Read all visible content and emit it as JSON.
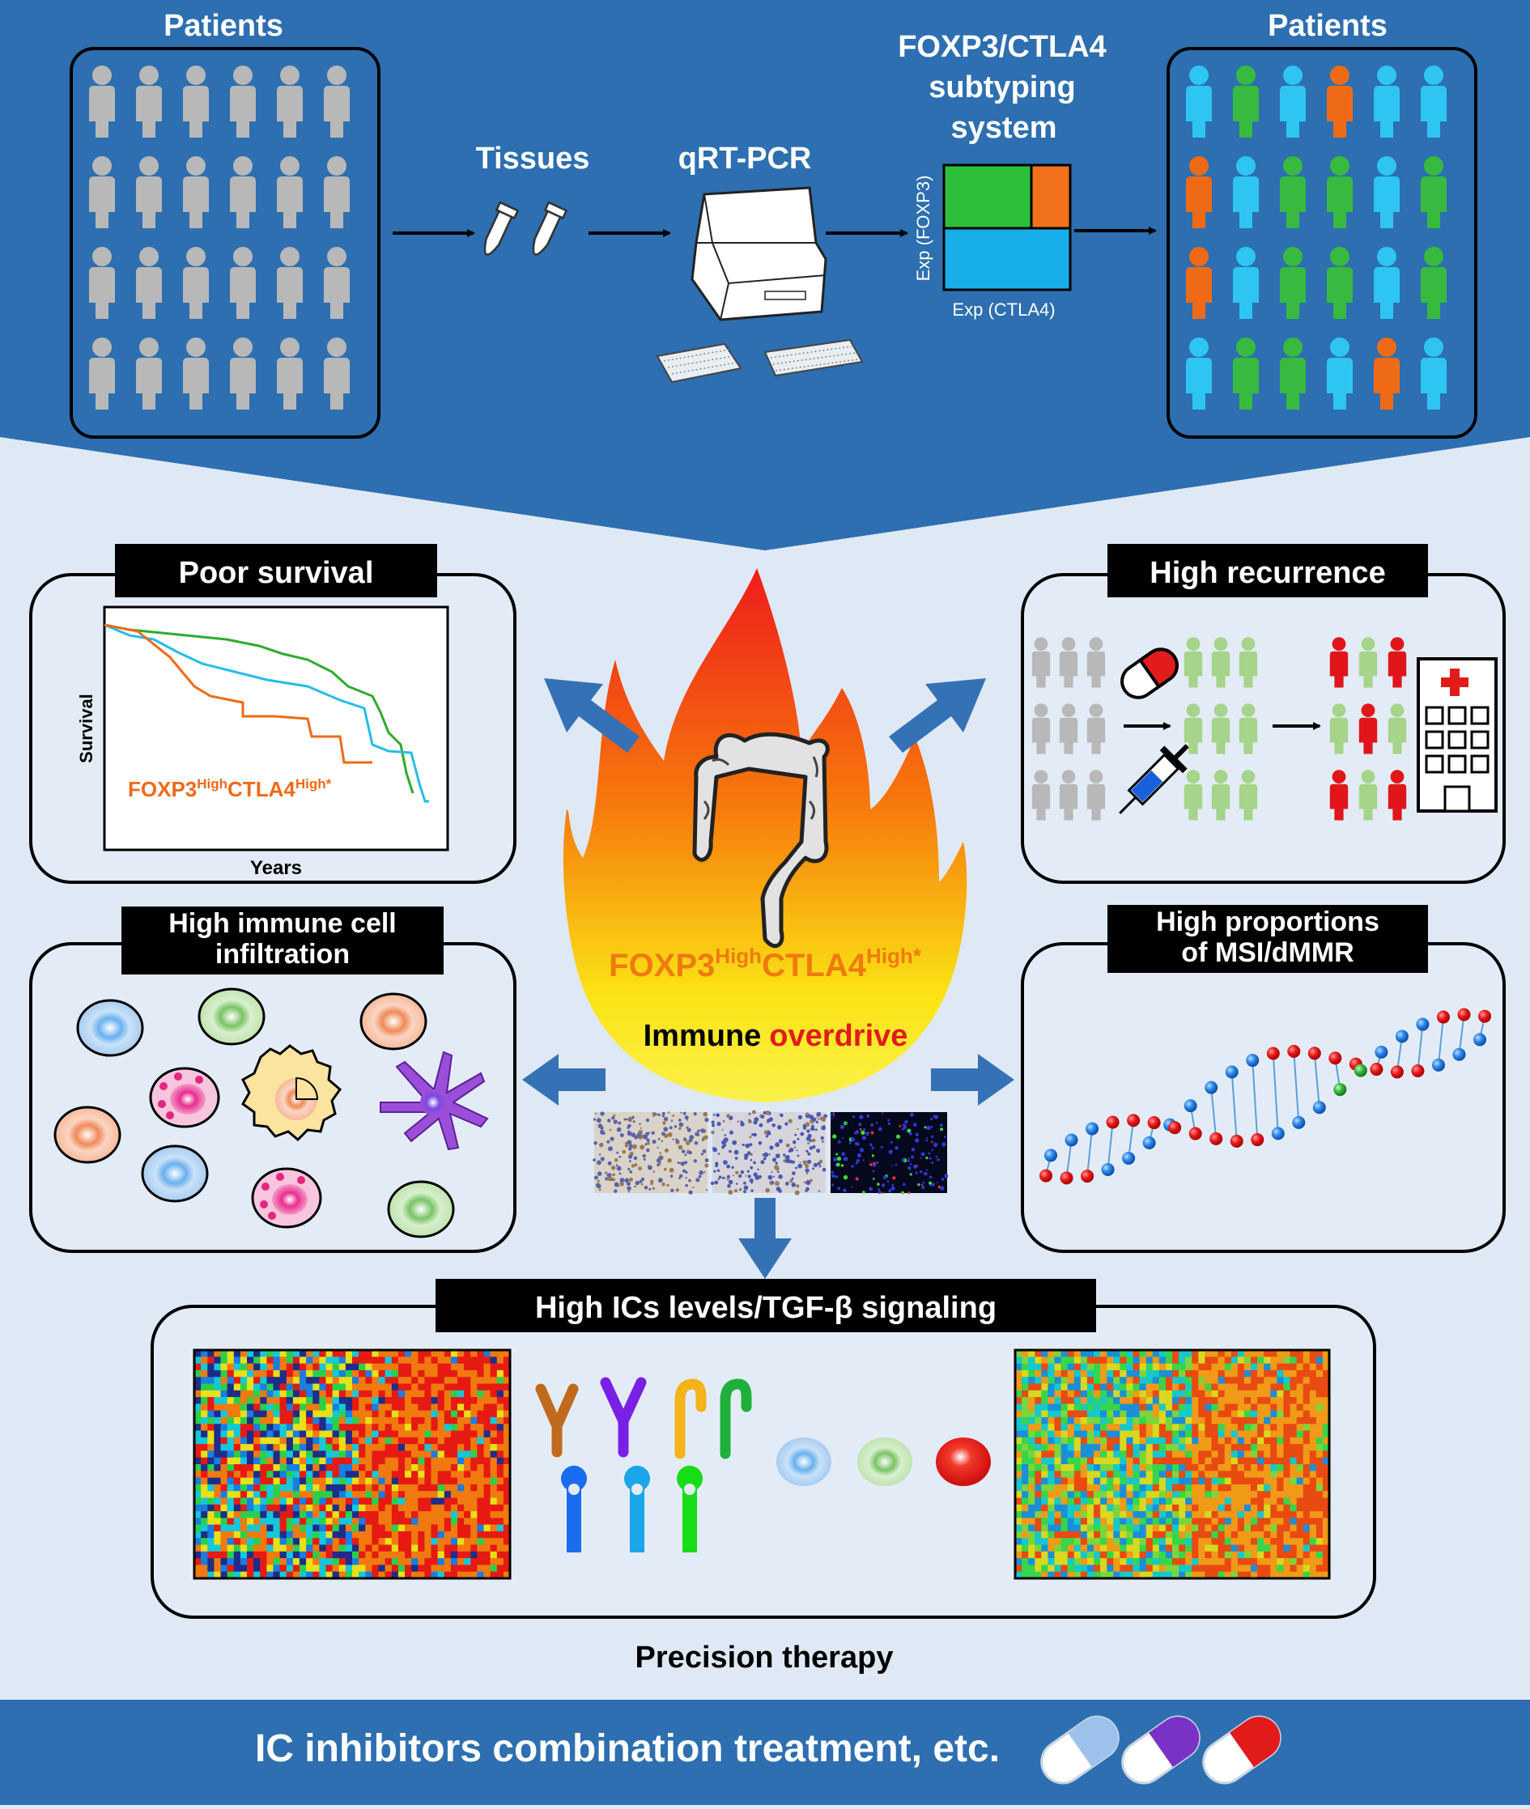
{
  "colors": {
    "top_band": "#2d6fb0",
    "background": "#dfe9f5",
    "bottom_band": "#2d6fb0",
    "arrow_blue": "#3572b5",
    "grey_person": "#b8b8b8",
    "cyan_person": "#2ec5f2",
    "green_person": "#38b93f",
    "orange_person": "#ef6a17",
    "light_green_person": "#a6d48a",
    "red_person": "#e0161b",
    "box_green": "#2dbf3a",
    "box_orange": "#f0701c",
    "box_cyan": "#17aeea"
  },
  "workflow": {
    "patients_left_title": "Patients",
    "tissues_label": "Tissues",
    "qrtpcr_label": "qRT-PCR",
    "subtyping_title_line1": "FOXP3/CTLA4",
    "subtyping_title_line2": "subtyping",
    "subtyping_title_line3": "system",
    "subtyping_y_axis": "Exp (FOXP3)",
    "subtyping_x_axis": "Exp (CTLA4)",
    "patients_right_title": "Patients",
    "patients_right_grid": [
      [
        "cyan",
        "green",
        "cyan",
        "orange",
        "cyan",
        "cyan"
      ],
      [
        "orange",
        "cyan",
        "green",
        "green",
        "cyan",
        "green"
      ],
      [
        "orange",
        "cyan",
        "green",
        "green",
        "cyan",
        "green"
      ],
      [
        "cyan",
        "green",
        "green",
        "cyan",
        "orange",
        "cyan"
      ]
    ]
  },
  "center": {
    "subtype_main1": "FOXP3",
    "subtype_sup1": "High",
    "subtype_main2": "CTLA4",
    "subtype_sup2": "High*",
    "immune_word1": "Immune",
    "immune_word2": "overdrive"
  },
  "panels": {
    "survival": {
      "title": "Poor survival",
      "y_label": "Survival",
      "x_label": "Years",
      "curve_label_main1": "FOXP3",
      "curve_label_sup1": "High",
      "curve_label_main2": "CTLA4",
      "curve_label_sup2": "High*"
    },
    "recurrence": {
      "title": "High recurrence"
    },
    "immune": {
      "title_line1": "High immune cell",
      "title_line2": "infiltration"
    },
    "msi": {
      "title_line1": "High proportions",
      "title_line2": "of MSI/dMMR"
    },
    "ics": {
      "title": "High ICs levels/TGF-β signaling"
    }
  },
  "bottom": {
    "precision_label": "Precision therapy",
    "treatment_label": "IC inhibitors combination treatment, etc."
  },
  "icons": {
    "tube": "tube-icon",
    "pcr_machine": "pcr-machine-icon",
    "colon": "colon-icon",
    "flame": "flame-icon",
    "pill": "pill-icon",
    "syringe": "syringe-icon",
    "hospital": "hospital-icon",
    "antibody": "antibody-icon",
    "receptor": "receptor-icon",
    "dna": "dna-helix-icon",
    "heatmap": "heatmap-icon",
    "capsule": "capsule-icon"
  }
}
